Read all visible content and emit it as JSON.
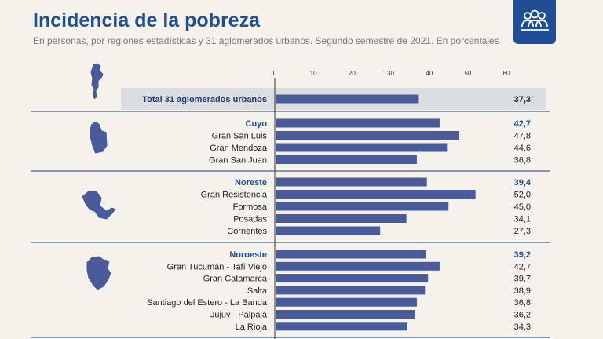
{
  "header": {
    "title": "Incidencia de la pobreza",
    "subtitle": "En personas, por regiones estadísticas y 31 aglomerados urbanos. Segundo semestre de 2021. En porcentajes"
  },
  "badge": {
    "icon": "people-group-icon"
  },
  "colors": {
    "bar": "#4a5b9c",
    "heading": "#1f4e96",
    "highlight": "#dcdde0",
    "map": "#4a5b9c"
  },
  "chart_data": {
    "type": "bar",
    "orientation": "horizontal",
    "xlim": [
      0,
      60
    ],
    "ticks": [
      0,
      10,
      20,
      30,
      40,
      50,
      60
    ],
    "groups": [
      {
        "map_icon": "argentina-map-icon",
        "rows": [
          {
            "label": "Total 31 aglomerados urbanos",
            "value": 37.3,
            "value_label": "37,3",
            "kind": "total"
          }
        ]
      },
      {
        "map_icon": "cuyo-region-map-icon",
        "rows": [
          {
            "label": "Cuyo",
            "value": 42.7,
            "value_label": "42,7",
            "kind": "region"
          },
          {
            "label": "Gran San Luis",
            "value": 47.8,
            "value_label": "47,8",
            "kind": "city"
          },
          {
            "label": "Gran Mendoza",
            "value": 44.6,
            "value_label": "44,6",
            "kind": "city"
          },
          {
            "label": "Gran San Juan",
            "value": 36.8,
            "value_label": "36,8",
            "kind": "city"
          }
        ]
      },
      {
        "map_icon": "noreste-region-map-icon",
        "rows": [
          {
            "label": "Noreste",
            "value": 39.4,
            "value_label": "39,4",
            "kind": "region"
          },
          {
            "label": "Gran Resistencia",
            "value": 52.0,
            "value_label": "52,0",
            "kind": "city"
          },
          {
            "label": "Formosa",
            "value": 45.0,
            "value_label": "45,0",
            "kind": "city"
          },
          {
            "label": "Posadas",
            "value": 34.1,
            "value_label": "34,1",
            "kind": "city"
          },
          {
            "label": "Corrientes",
            "value": 27.3,
            "value_label": "27,3",
            "kind": "city"
          }
        ]
      },
      {
        "map_icon": "noroeste-region-map-icon",
        "rows": [
          {
            "label": "Noroeste",
            "value": 39.2,
            "value_label": "39,2",
            "kind": "region"
          },
          {
            "label": "Gran Tucumán - Tafí Viejo",
            "value": 42.7,
            "value_label": "42,7",
            "kind": "city"
          },
          {
            "label": "Gran Catamarca",
            "value": 39.7,
            "value_label": "39,7",
            "kind": "city"
          },
          {
            "label": "Salta",
            "value": 38.9,
            "value_label": "38,9",
            "kind": "city"
          },
          {
            "label": "Santiago del Estero - La Banda",
            "value": 36.8,
            "value_label": "36,8",
            "kind": "city"
          },
          {
            "label": "Jujuy -  Palpalá",
            "value": 36.2,
            "value_label": "36,2",
            "kind": "city"
          },
          {
            "label": "La Rioja",
            "value": 34.3,
            "value_label": "34,3",
            "kind": "city"
          }
        ]
      }
    ]
  }
}
